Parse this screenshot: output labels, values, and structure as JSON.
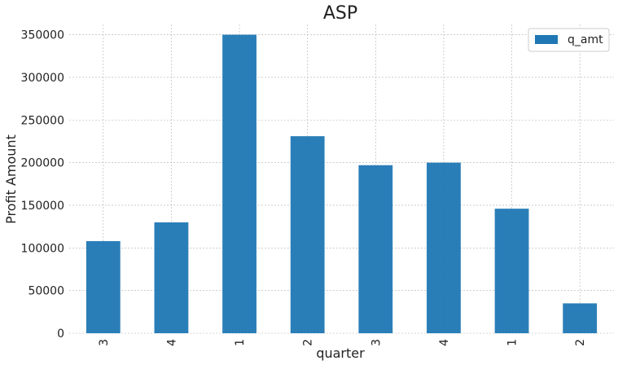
{
  "chart_data": {
    "type": "bar",
    "title": "ASP",
    "xlabel": "quarter",
    "ylabel": "Profit Amount",
    "categories": [
      "3",
      "4",
      "1",
      "2",
      "3",
      "4",
      "1",
      "2"
    ],
    "series": [
      {
        "name": "q_amt",
        "color": "#1f77b4",
        "values": [
          108000,
          130000,
          350000,
          231000,
          197000,
          200000,
          146000,
          35000
        ]
      }
    ],
    "ylim": [
      0,
      362000
    ],
    "yticks": [
      0,
      50000,
      100000,
      150000,
      200000,
      250000,
      300000,
      350000
    ],
    "ytick_labels": [
      "0",
      "50000",
      "100000",
      "150000",
      "200000",
      "250000",
      "300000",
      "350000"
    ],
    "grid": true,
    "legend_position": "top-right"
  }
}
